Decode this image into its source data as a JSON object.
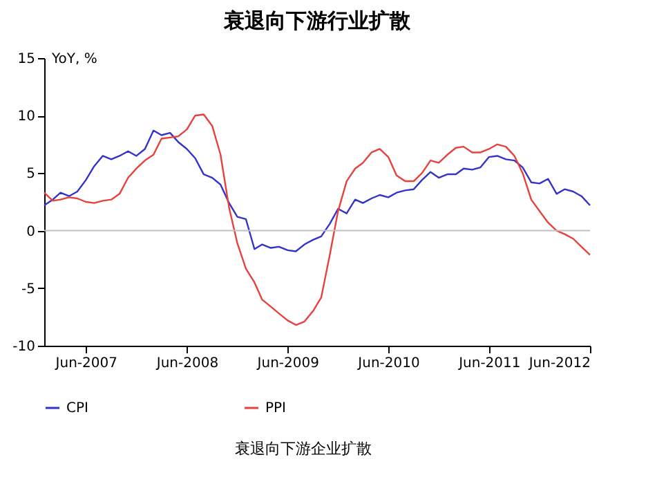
{
  "chart_data": {
    "type": "line",
    "title": "衰退向下游行业扩散",
    "ylabel": "YoY, %",
    "x": [
      "2007-01",
      "2007-02",
      "2007-03",
      "2007-04",
      "2007-05",
      "2007-06",
      "2007-07",
      "2007-08",
      "2007-09",
      "2007-10",
      "2007-11",
      "2007-12",
      "2008-01",
      "2008-02",
      "2008-03",
      "2008-04",
      "2008-05",
      "2008-06",
      "2008-07",
      "2008-08",
      "2008-09",
      "2008-10",
      "2008-11",
      "2008-12",
      "2009-01",
      "2009-02",
      "2009-03",
      "2009-04",
      "2009-05",
      "2009-06",
      "2009-07",
      "2009-08",
      "2009-09",
      "2009-10",
      "2009-11",
      "2009-12",
      "2010-01",
      "2010-02",
      "2010-03",
      "2010-04",
      "2010-05",
      "2010-06",
      "2010-07",
      "2010-08",
      "2010-09",
      "2010-10",
      "2010-11",
      "2010-12",
      "2011-01",
      "2011-02",
      "2011-03",
      "2011-04",
      "2011-05",
      "2011-06",
      "2011-07",
      "2011-08",
      "2011-09",
      "2011-10",
      "2011-11",
      "2011-12",
      "2012-01",
      "2012-02",
      "2012-03",
      "2012-04",
      "2012-05",
      "2012-06"
    ],
    "series": [
      {
        "name": "CPI",
        "color": "#3333cc",
        "values": [
          2.2,
          2.7,
          3.3,
          3.0,
          3.4,
          4.4,
          5.6,
          6.5,
          6.2,
          6.5,
          6.9,
          6.5,
          7.1,
          8.7,
          8.3,
          8.5,
          7.7,
          7.1,
          6.3,
          4.9,
          4.6,
          4.0,
          2.4,
          1.2,
          1.0,
          -1.6,
          -1.2,
          -1.5,
          -1.4,
          -1.7,
          -1.8,
          -1.2,
          -0.8,
          -0.5,
          0.6,
          1.9,
          1.5,
          2.7,
          2.4,
          2.8,
          3.1,
          2.9,
          3.3,
          3.5,
          3.6,
          4.4,
          5.1,
          4.6,
          4.9,
          4.9,
          5.4,
          5.3,
          5.5,
          6.4,
          6.5,
          6.2,
          6.1,
          5.5,
          4.2,
          4.1,
          4.5,
          3.2,
          3.6,
          3.4,
          3.0,
          2.2
        ]
      },
      {
        "name": "PPI",
        "color": "#e8413c",
        "values": [
          3.3,
          2.6,
          2.7,
          2.9,
          2.8,
          2.5,
          2.4,
          2.6,
          2.7,
          3.2,
          4.6,
          5.4,
          6.1,
          6.6,
          8.0,
          8.1,
          8.2,
          8.8,
          10.0,
          10.1,
          9.1,
          6.6,
          2.0,
          -1.1,
          -3.3,
          -4.5,
          -6.0,
          -6.6,
          -7.2,
          -7.8,
          -8.2,
          -7.9,
          -7.0,
          -5.8,
          -2.1,
          1.7,
          4.3,
          5.4,
          5.9,
          6.8,
          7.1,
          6.4,
          4.8,
          4.3,
          4.3,
          5.0,
          6.1,
          5.9,
          6.6,
          7.2,
          7.3,
          6.8,
          6.8,
          7.1,
          7.5,
          7.3,
          6.5,
          5.0,
          2.7,
          1.7,
          0.7,
          0.0,
          -0.3,
          -0.7,
          -1.4,
          -2.1
        ]
      }
    ],
    "xlim": [
      "2007-01",
      "2012-06"
    ],
    "xticks": [
      {
        "value": "2007-06",
        "label": "Jun-2007"
      },
      {
        "value": "2008-06",
        "label": "Jun-2008"
      },
      {
        "value": "2009-06",
        "label": "Jun-2009"
      },
      {
        "value": "2010-06",
        "label": "Jun-2010"
      },
      {
        "value": "2011-06",
        "label": "Jun-2011"
      },
      {
        "value": "2012-06",
        "label": "Jun-2012"
      }
    ],
    "ylim": [
      -10,
      15
    ],
    "yticks": [
      -10,
      -5,
      0,
      5,
      10,
      15
    ],
    "ref_lines": [
      {
        "axis": "y",
        "value": 0,
        "color": "#c0c0c0"
      }
    ],
    "annotations": [
      "衰退向下游企业扩散"
    ],
    "grid": false,
    "legend": "bottom",
    "marker": "none",
    "line_style": "solid"
  }
}
